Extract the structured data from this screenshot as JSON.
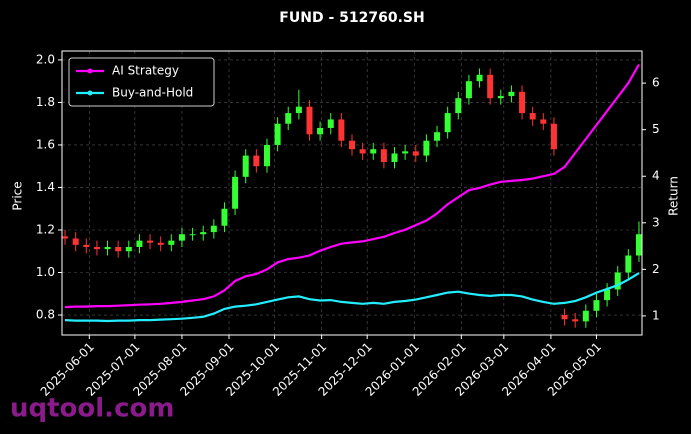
{
  "chart_data": {
    "type": "candlestick",
    "title": "FUND - 512760.SH",
    "ylabel": "Price",
    "y2label": "Return",
    "watermark": "uqtool.com",
    "grid": true,
    "legend": "upper left",
    "up_color": "#33ff33",
    "down_color": "#ff3333",
    "x": [
      "2025-05-16",
      "2025-05-23",
      "2025-05-30",
      "2025-06-06",
      "2025-06-13",
      "2025-06-20",
      "2025-06-27",
      "2025-07-04",
      "2025-07-11",
      "2025-07-18",
      "2025-07-25",
      "2025-08-01",
      "2025-08-08",
      "2025-08-15",
      "2025-08-22",
      "2025-08-29",
      "2025-09-05",
      "2025-09-12",
      "2025-09-19",
      "2025-09-26",
      "2025-10-03",
      "2025-10-10",
      "2025-10-17",
      "2025-10-24",
      "2025-10-31",
      "2025-11-07",
      "2025-11-14",
      "2025-11-21",
      "2025-11-28",
      "2025-12-05",
      "2025-12-12",
      "2025-12-19",
      "2025-12-26",
      "2026-01-02",
      "2026-01-09",
      "2026-01-16",
      "2026-01-23",
      "2026-01-30",
      "2026-02-06",
      "2026-02-13",
      "2026-02-20",
      "2026-02-27",
      "2026-03-06",
      "2026-03-13",
      "2026-03-20",
      "2026-03-27",
      "2026-04-03",
      "2026-04-10",
      "2026-04-17",
      "2026-04-24",
      "2026-05-01",
      "2026-05-08",
      "2026-05-15",
      "2026-05-22",
      "2026-05-29"
    ],
    "open": [
      1.17,
      1.16,
      1.13,
      1.12,
      1.11,
      1.12,
      1.1,
      1.12,
      1.15,
      1.14,
      1.13,
      1.15,
      1.18,
      1.18,
      1.19,
      1.22,
      1.3,
      1.45,
      1.55,
      1.5,
      1.6,
      1.7,
      1.75,
      1.78,
      1.65,
      1.68,
      1.72,
      1.62,
      1.58,
      1.56,
      1.58,
      1.52,
      1.56,
      1.57,
      1.55,
      1.62,
      1.66,
      1.75,
      1.82,
      1.9,
      1.93,
      1.82,
      1.83,
      1.85,
      1.75,
      1.72,
      1.7,
      0.8,
      0.78,
      0.77,
      0.82,
      0.87,
      0.92,
      1.0,
      1.08
    ],
    "high": [
      1.2,
      1.19,
      1.16,
      1.15,
      1.15,
      1.15,
      1.15,
      1.18,
      1.18,
      1.17,
      1.18,
      1.21,
      1.21,
      1.22,
      1.25,
      1.33,
      1.48,
      1.58,
      1.58,
      1.63,
      1.73,
      1.78,
      1.86,
      1.81,
      1.71,
      1.75,
      1.75,
      1.65,
      1.61,
      1.61,
      1.61,
      1.59,
      1.6,
      1.6,
      1.65,
      1.69,
      1.78,
      1.85,
      1.93,
      1.96,
      1.96,
      1.86,
      1.88,
      1.88,
      1.78,
      1.75,
      1.73,
      0.83,
      0.81,
      0.85,
      0.9,
      0.95,
      1.03,
      1.11,
      1.24
    ],
    "low": [
      1.13,
      1.1,
      1.09,
      1.08,
      1.08,
      1.07,
      1.07,
      1.09,
      1.11,
      1.1,
      1.1,
      1.12,
      1.15,
      1.15,
      1.16,
      1.19,
      1.27,
      1.42,
      1.47,
      1.47,
      1.57,
      1.67,
      1.72,
      1.62,
      1.62,
      1.65,
      1.59,
      1.55,
      1.53,
      1.53,
      1.49,
      1.49,
      1.53,
      1.52,
      1.52,
      1.59,
      1.63,
      1.72,
      1.79,
      1.87,
      1.79,
      1.79,
      1.8,
      1.72,
      1.69,
      1.67,
      1.55,
      0.75,
      0.74,
      0.74,
      0.79,
      0.84,
      0.89,
      0.97,
      1.05
    ],
    "close": [
      1.16,
      1.13,
      1.12,
      1.11,
      1.12,
      1.1,
      1.12,
      1.15,
      1.14,
      1.13,
      1.15,
      1.18,
      1.18,
      1.19,
      1.22,
      1.3,
      1.45,
      1.55,
      1.5,
      1.6,
      1.7,
      1.75,
      1.78,
      1.65,
      1.68,
      1.72,
      1.62,
      1.58,
      1.56,
      1.58,
      1.52,
      1.56,
      1.57,
      1.55,
      1.62,
      1.66,
      1.75,
      1.82,
      1.9,
      1.93,
      1.82,
      1.83,
      1.85,
      1.75,
      1.72,
      1.7,
      1.58,
      0.78,
      0.77,
      0.82,
      0.87,
      0.92,
      1.0,
      1.08,
      1.18
    ],
    "series": [
      {
        "name": "AI Strategy",
        "color": "#ff00ff",
        "axis": "y2",
        "values": [
          1.19,
          1.2,
          1.2,
          1.21,
          1.21,
          1.22,
          1.23,
          1.24,
          1.25,
          1.26,
          1.28,
          1.3,
          1.33,
          1.36,
          1.42,
          1.55,
          1.75,
          1.85,
          1.9,
          2.0,
          2.15,
          2.22,
          2.25,
          2.3,
          2.4,
          2.48,
          2.55,
          2.58,
          2.6,
          2.65,
          2.7,
          2.78,
          2.85,
          2.95,
          3.05,
          3.2,
          3.4,
          3.55,
          3.7,
          3.75,
          3.82,
          3.88,
          3.9,
          3.92,
          3.95,
          4.0,
          4.05,
          4.2,
          4.5,
          4.8,
          5.1,
          5.4,
          5.7,
          6.0,
          6.4
        ]
      },
      {
        "name": "Buy-and-Hold",
        "color": "#22eeff",
        "axis": "y2",
        "values": [
          0.91,
          0.9,
          0.9,
          0.9,
          0.89,
          0.9,
          0.9,
          0.91,
          0.91,
          0.92,
          0.93,
          0.94,
          0.96,
          0.98,
          1.05,
          1.15,
          1.2,
          1.22,
          1.25,
          1.3,
          1.35,
          1.4,
          1.42,
          1.36,
          1.33,
          1.34,
          1.3,
          1.28,
          1.26,
          1.28,
          1.26,
          1.3,
          1.32,
          1.35,
          1.4,
          1.45,
          1.5,
          1.52,
          1.48,
          1.45,
          1.43,
          1.45,
          1.45,
          1.42,
          1.35,
          1.3,
          1.26,
          1.28,
          1.32,
          1.4,
          1.5,
          1.58,
          1.66,
          1.78,
          1.92
        ]
      }
    ],
    "xlim": [
      "2025-05-14",
      "2026-05-31"
    ],
    "xticks": [
      "2025-06-01",
      "2025-07-01",
      "2025-08-01",
      "2025-09-01",
      "2025-10-01",
      "2025-11-01",
      "2025-12-01",
      "2026-01-01",
      "2026-02-01",
      "2026-03-01",
      "2026-04-01",
      "2026-05-01"
    ],
    "ylim": [
      0.706,
      2.042
    ],
    "yticks": [
      0.8,
      {
        "value": 1.0,
        "label": "1.0"
      },
      1.2,
      1.4,
      1.6,
      1.8,
      {
        "value": 2.0,
        "label": "2.0"
      }
    ],
    "y2lim": [
      0.59,
      6.69
    ],
    "y2ticks": [
      1,
      2,
      3,
      4,
      5,
      6
    ]
  }
}
